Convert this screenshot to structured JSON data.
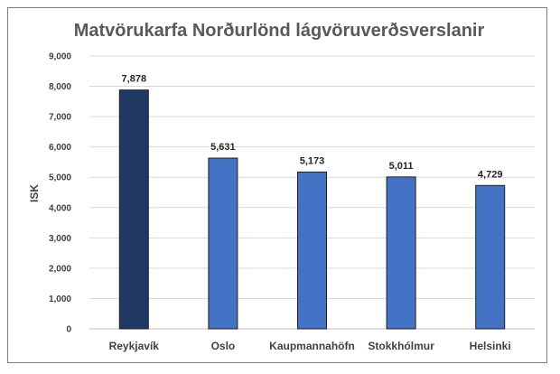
{
  "chart_data": {
    "type": "bar",
    "title": "Matvörukarfa Norðurlönd lágvöruverðsverslanir",
    "xlabel": "",
    "ylabel": "ISK",
    "ylim": [
      0,
      9000
    ],
    "ytick_step": 1000,
    "ytick_labels": [
      "0",
      "1,000",
      "2,000",
      "3,000",
      "4,000",
      "5,000",
      "6,000",
      "7,000",
      "8,000",
      "9,000"
    ],
    "grid": true,
    "legend": "none",
    "categories": [
      "Reykjavík",
      "Oslo",
      "Kaupmannahöfn",
      "Stokkhólmur",
      "Helsinki"
    ],
    "values": [
      7878,
      5631,
      5173,
      5011,
      4729
    ],
    "value_labels": [
      "7,878",
      "5,631",
      "5,173",
      "5,011",
      "4,729"
    ],
    "bar_colors": [
      "#1f3864",
      "#4472c4",
      "#4472c4",
      "#4472c4",
      "#4472c4"
    ]
  }
}
